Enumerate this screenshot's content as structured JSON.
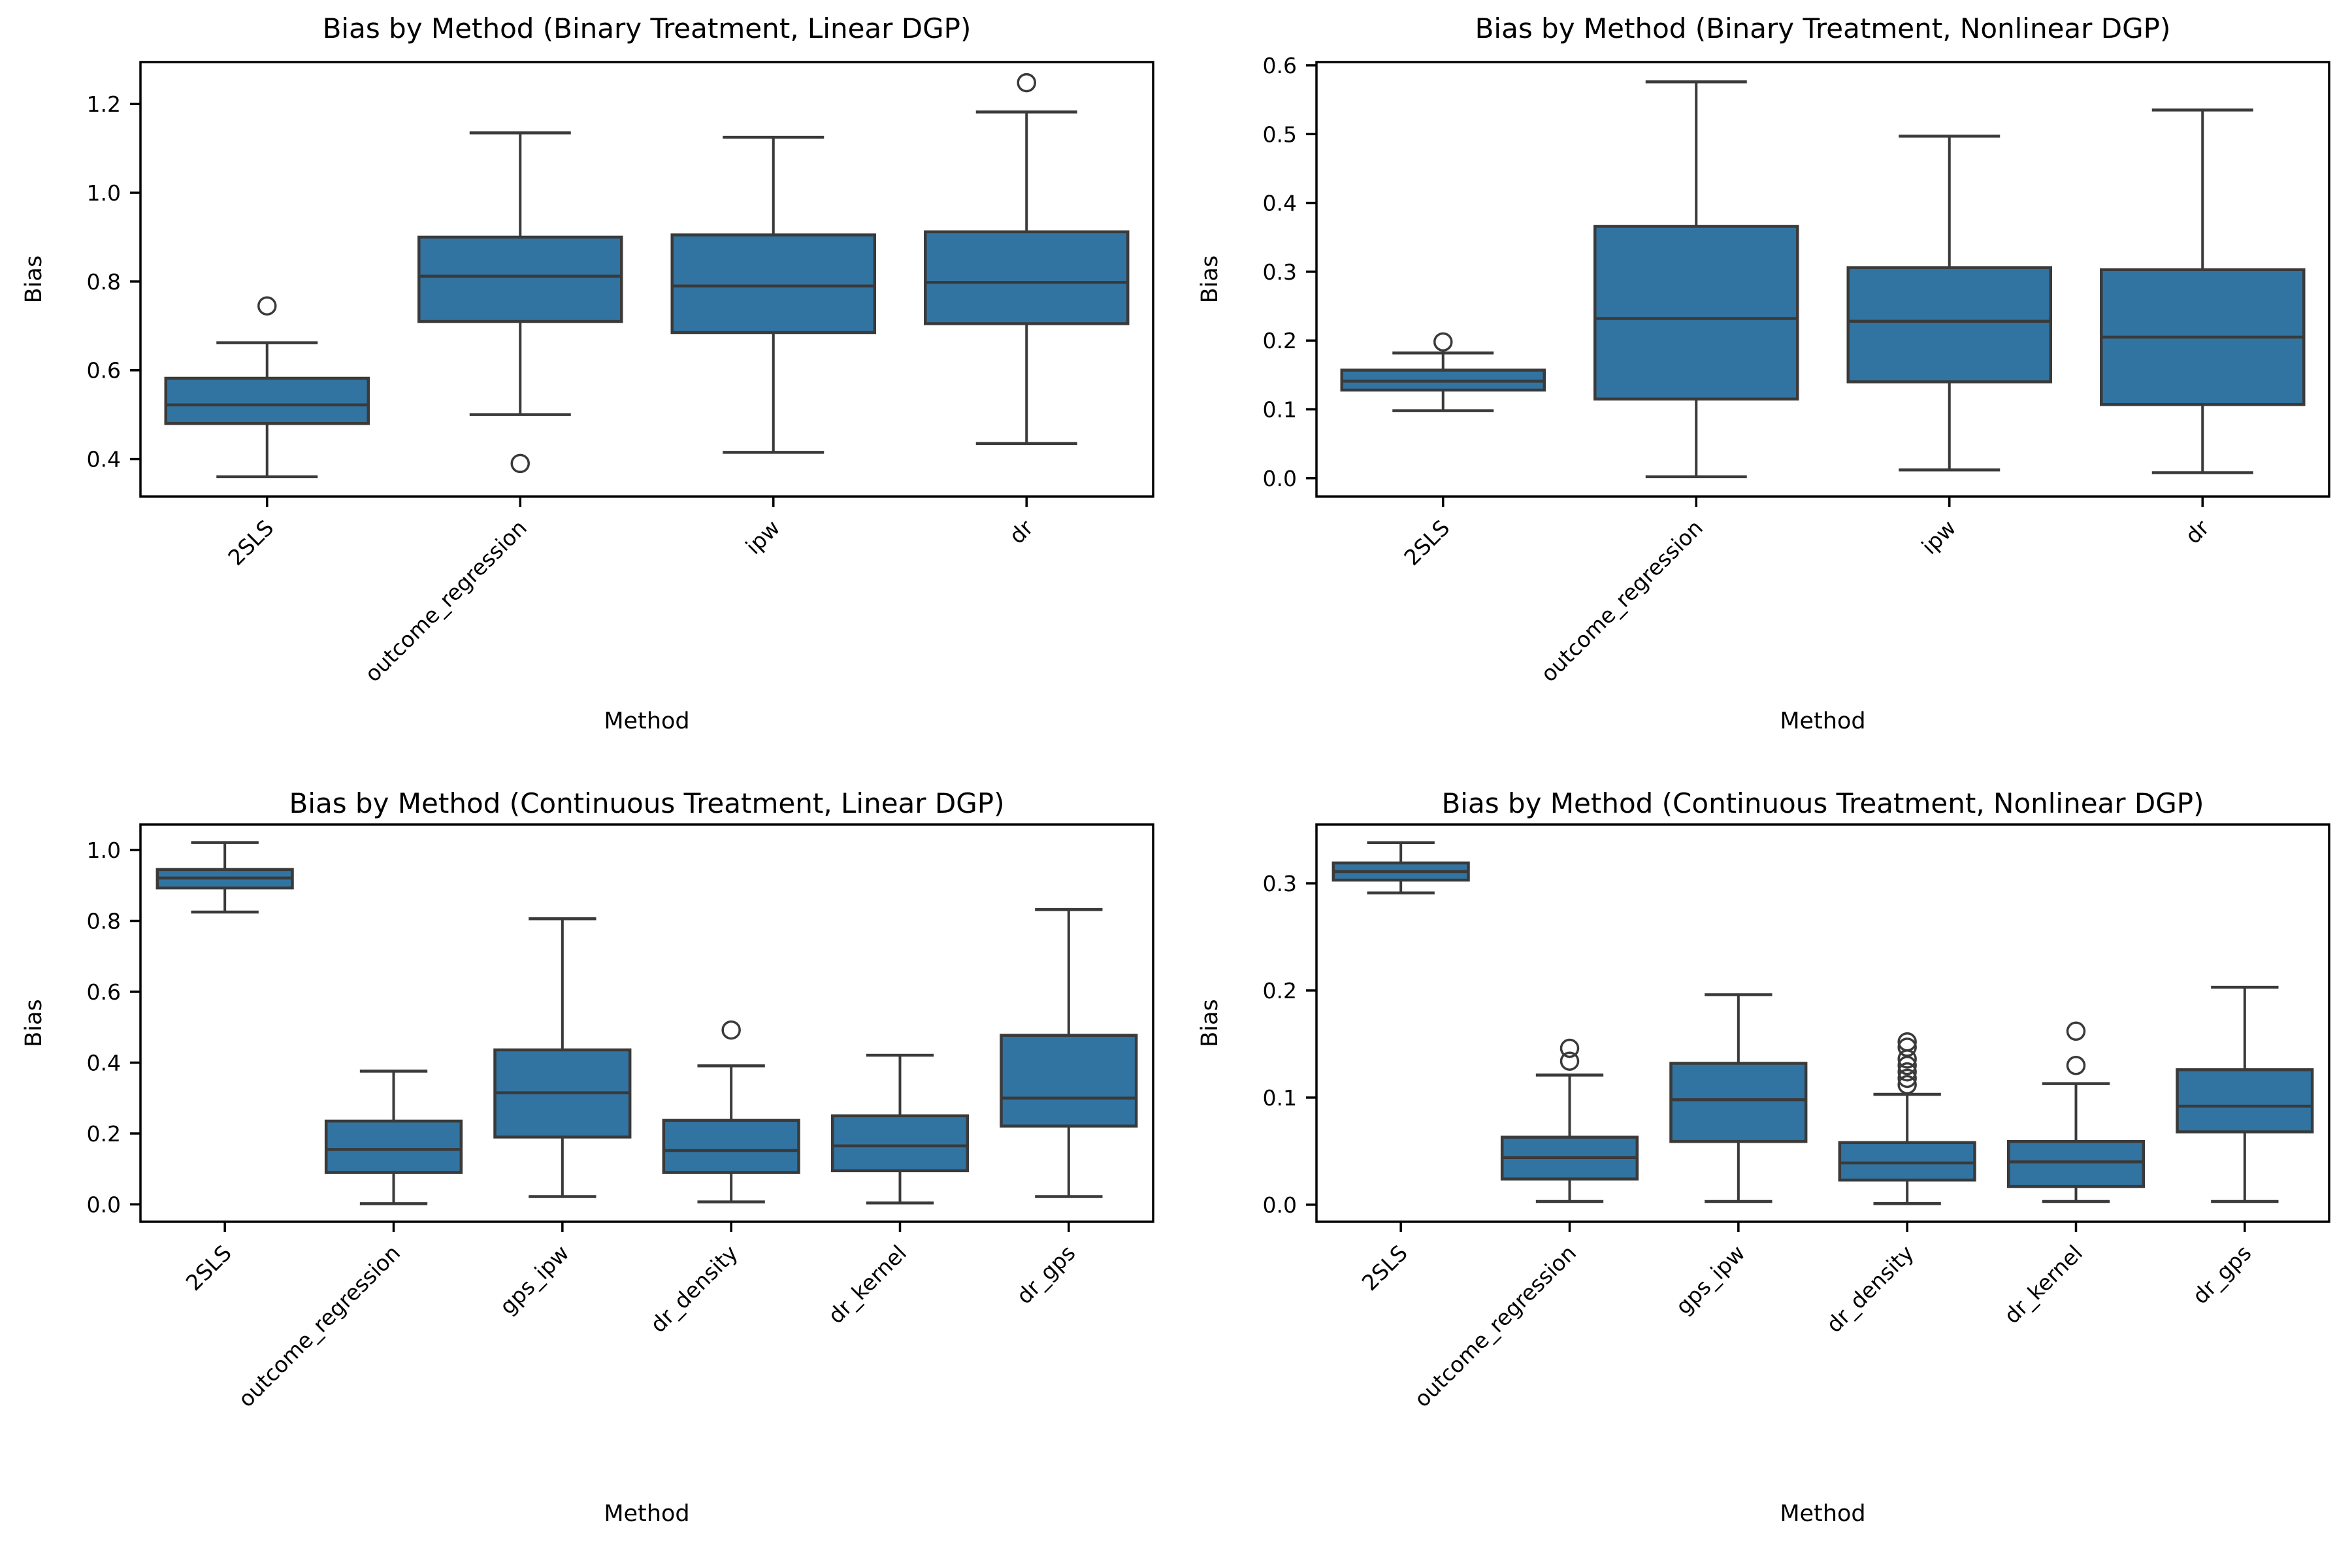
{
  "figure": {
    "background": "#ffffff",
    "box_fill": "#3274A1",
    "line_color": "#3A3A3A",
    "text_color": "#000000"
  },
  "chart_data": [
    {
      "type": "box",
      "title": "Bias by Method (Binary Treatment, Linear DGP)",
      "xlabel": "Method",
      "ylabel": "Bias",
      "ylim": [
        0.3155,
        1.2945
      ],
      "yticks": [
        0.4,
        0.6,
        0.8,
        1.0,
        1.2
      ],
      "ytick_labels": [
        "0.4",
        "0.6",
        "0.8",
        "1.0",
        "1.2"
      ],
      "grid": false,
      "legend": "none",
      "categories": [
        "2SLS",
        "outcome_regression",
        "ipw",
        "dr"
      ],
      "boxes": [
        {
          "whislo": 0.36,
          "q1": 0.48,
          "med": 0.522,
          "q3": 0.582,
          "whishi": 0.662,
          "outliers": [
            0.745
          ]
        },
        {
          "whislo": 0.5,
          "q1": 0.71,
          "med": 0.812,
          "q3": 0.9,
          "whishi": 1.135,
          "outliers": [
            0.39
          ]
        },
        {
          "whislo": 0.415,
          "q1": 0.685,
          "med": 0.79,
          "q3": 0.905,
          "whishi": 1.125,
          "outliers": []
        },
        {
          "whislo": 0.435,
          "q1": 0.705,
          "med": 0.798,
          "q3": 0.912,
          "whishi": 1.182,
          "outliers": [
            1.248
          ]
        }
      ]
    },
    {
      "type": "box",
      "title": "Bias by Method (Binary Treatment, Nonlinear DGP)",
      "xlabel": "Method",
      "ylabel": "Bias",
      "ylim": [
        -0.0267,
        0.6047
      ],
      "yticks": [
        0.0,
        0.1,
        0.2,
        0.3,
        0.4,
        0.5,
        0.6
      ],
      "ytick_labels": [
        "0.0",
        "0.1",
        "0.2",
        "0.3",
        "0.4",
        "0.5",
        "0.6"
      ],
      "grid": false,
      "legend": "none",
      "categories": [
        "2SLS",
        "outcome_regression",
        "ipw",
        "dr"
      ],
      "boxes": [
        {
          "whislo": 0.098,
          "q1": 0.128,
          "med": 0.141,
          "q3": 0.157,
          "whishi": 0.182,
          "outliers": [
            0.198
          ]
        },
        {
          "whislo": 0.002,
          "q1": 0.115,
          "med": 0.232,
          "q3": 0.366,
          "whishi": 0.576,
          "outliers": []
        },
        {
          "whislo": 0.012,
          "q1": 0.14,
          "med": 0.228,
          "q3": 0.306,
          "whishi": 0.497,
          "outliers": []
        },
        {
          "whislo": 0.008,
          "q1": 0.107,
          "med": 0.205,
          "q3": 0.303,
          "whishi": 0.535,
          "outliers": []
        }
      ]
    },
    {
      "type": "box",
      "title": "Bias by Method (Continuous Treatment, Linear DGP)",
      "xlabel": "Method",
      "ylabel": "Bias",
      "ylim": [
        -0.049,
        1.072
      ],
      "yticks": [
        0.0,
        0.2,
        0.4,
        0.6,
        0.8,
        1.0
      ],
      "ytick_labels": [
        "0.0",
        "0.2",
        "0.4",
        "0.6",
        "0.8",
        "1.0"
      ],
      "grid": false,
      "legend": "none",
      "categories": [
        "2SLS",
        "outcome_regression",
        "gps_ipw",
        "dr_density",
        "dr_kernel",
        "dr_gps"
      ],
      "boxes": [
        {
          "whislo": 0.825,
          "q1": 0.893,
          "med": 0.921,
          "q3": 0.945,
          "whishi": 1.021,
          "outliers": []
        },
        {
          "whislo": 0.002,
          "q1": 0.09,
          "med": 0.155,
          "q3": 0.235,
          "whishi": 0.376,
          "outliers": []
        },
        {
          "whislo": 0.022,
          "q1": 0.19,
          "med": 0.315,
          "q3": 0.436,
          "whishi": 0.806,
          "outliers": []
        },
        {
          "whislo": 0.007,
          "q1": 0.09,
          "med": 0.152,
          "q3": 0.237,
          "whishi": 0.391,
          "outliers": [
            0.492
          ]
        },
        {
          "whislo": 0.004,
          "q1": 0.095,
          "med": 0.165,
          "q3": 0.25,
          "whishi": 0.421,
          "outliers": []
        },
        {
          "whislo": 0.022,
          "q1": 0.221,
          "med": 0.3,
          "q3": 0.477,
          "whishi": 0.832,
          "outliers": []
        }
      ]
    },
    {
      "type": "box",
      "title": "Bias by Method (Continuous Treatment, Nonlinear DGP)",
      "xlabel": "Method",
      "ylabel": "Bias",
      "ylim": [
        -0.0159,
        0.3549
      ],
      "yticks": [
        0.0,
        0.1,
        0.2,
        0.3
      ],
      "ytick_labels": [
        "0.0",
        "0.1",
        "0.2",
        "0.3"
      ],
      "grid": false,
      "legend": "none",
      "categories": [
        "2SLS",
        "outcome_regression",
        "gps_ipw",
        "dr_density",
        "dr_kernel",
        "dr_gps"
      ],
      "boxes": [
        {
          "whislo": 0.291,
          "q1": 0.303,
          "med": 0.311,
          "q3": 0.319,
          "whishi": 0.338,
          "outliers": []
        },
        {
          "whislo": 0.003,
          "q1": 0.024,
          "med": 0.044,
          "q3": 0.063,
          "whishi": 0.121,
          "outliers": [
            0.134,
            0.146
          ]
        },
        {
          "whislo": 0.003,
          "q1": 0.059,
          "med": 0.098,
          "q3": 0.132,
          "whishi": 0.196,
          "outliers": []
        },
        {
          "whislo": 0.001,
          "q1": 0.023,
          "med": 0.039,
          "q3": 0.058,
          "whishi": 0.103,
          "outliers": [
            0.112,
            0.118,
            0.124,
            0.13,
            0.136,
            0.147,
            0.152
          ]
        },
        {
          "whislo": 0.003,
          "q1": 0.017,
          "med": 0.04,
          "q3": 0.059,
          "whishi": 0.113,
          "outliers": [
            0.13,
            0.162
          ]
        },
        {
          "whislo": 0.003,
          "q1": 0.068,
          "med": 0.092,
          "q3": 0.126,
          "whishi": 0.203,
          "outliers": []
        }
      ]
    }
  ]
}
